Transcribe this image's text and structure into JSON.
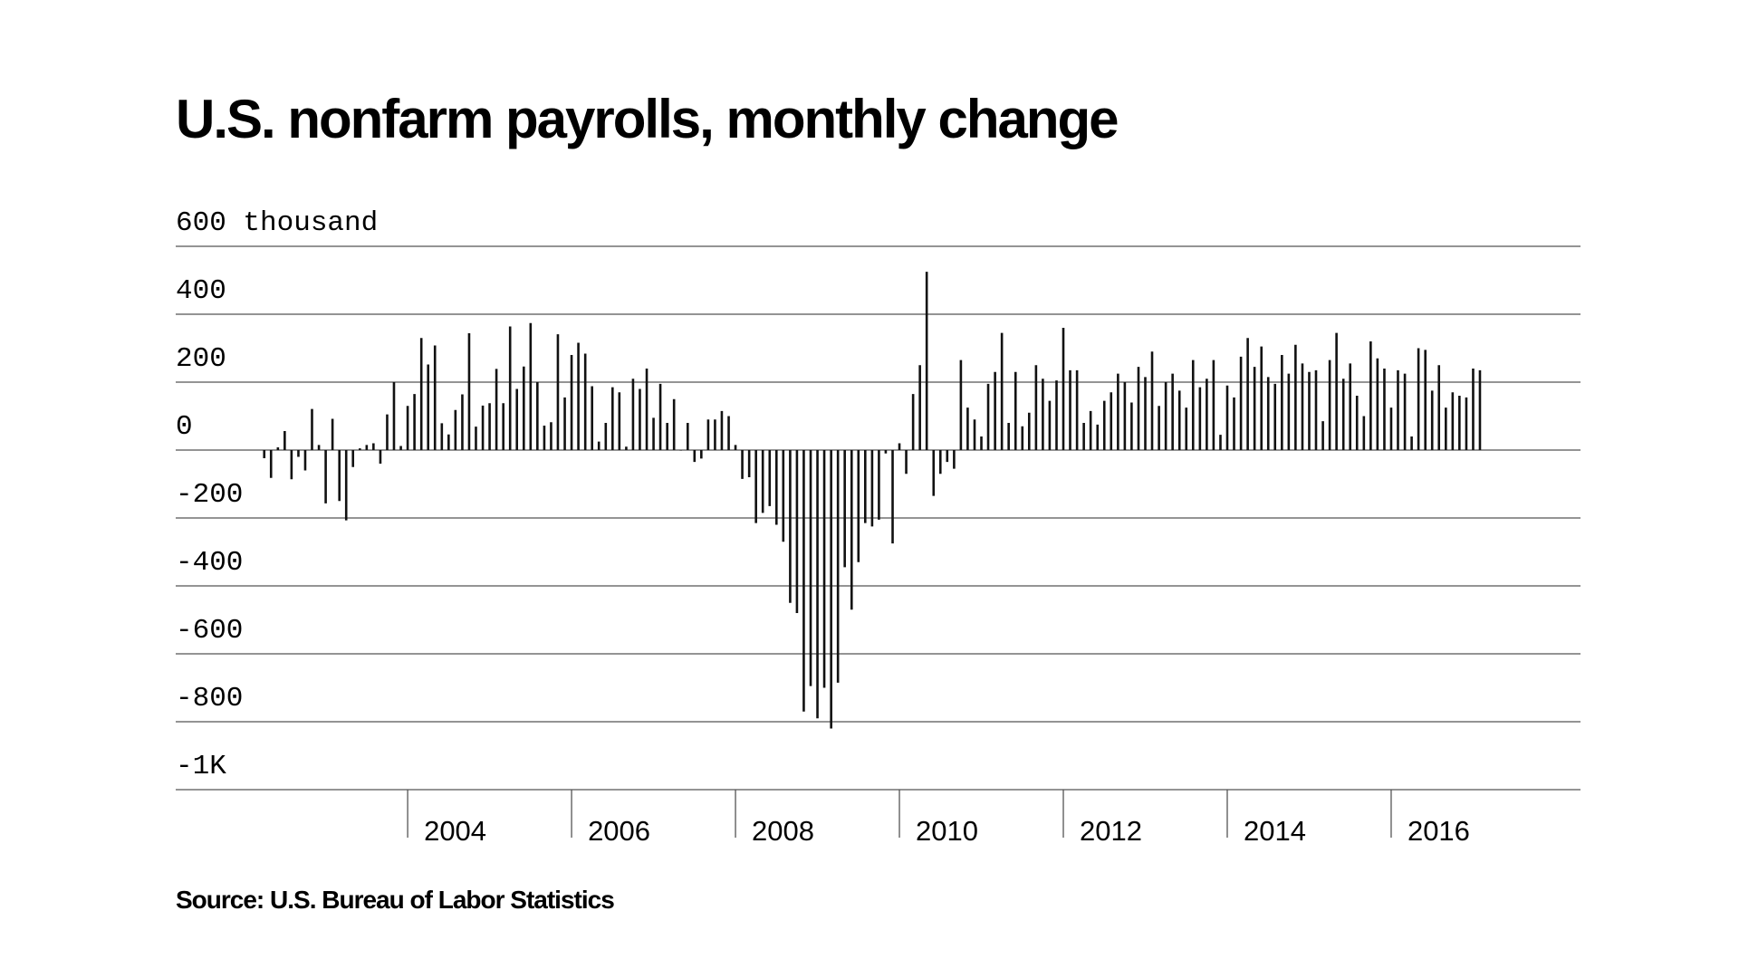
{
  "chart_data": {
    "type": "bar",
    "title": "U.S. nonfarm payrolls, monthly change",
    "source": "Source: U.S. Bureau of Labor Statistics",
    "color": "#111111",
    "grid": true,
    "xlim": [
      2001.17,
      2018.31
    ],
    "xticks": [
      2004,
      2006,
      2008,
      2010,
      2012,
      2014,
      2016
    ],
    "ylim": [
      -1000,
      600
    ],
    "yticks": [
      {
        "value": -1000,
        "label": "-1K"
      },
      -800,
      -600,
      -400,
      -200,
      0,
      200,
      400,
      {
        "value": 600,
        "label": "600 thousand"
      }
    ],
    "x": [
      2002.25,
      2002.333,
      2002.417,
      2002.5,
      2002.583,
      2002.667,
      2002.75,
      2002.833,
      2002.917,
      2003,
      2003.083,
      2003.167,
      2003.25,
      2003.333,
      2003.417,
      2003.5,
      2003.583,
      2003.667,
      2003.75,
      2003.833,
      2003.917,
      2004,
      2004.083,
      2004.167,
      2004.25,
      2004.333,
      2004.417,
      2004.5,
      2004.583,
      2004.667,
      2004.75,
      2004.833,
      2004.917,
      2005,
      2005.083,
      2005.167,
      2005.25,
      2005.333,
      2005.417,
      2005.5,
      2005.583,
      2005.667,
      2005.75,
      2005.833,
      2005.917,
      2006,
      2006.083,
      2006.167,
      2006.25,
      2006.333,
      2006.417,
      2006.5,
      2006.583,
      2006.667,
      2006.75,
      2006.833,
      2006.917,
      2007,
      2007.083,
      2007.167,
      2007.25,
      2007.333,
      2007.417,
      2007.5,
      2007.583,
      2007.667,
      2007.75,
      2007.833,
      2007.917,
      2008,
      2008.083,
      2008.167,
      2008.25,
      2008.333,
      2008.417,
      2008.5,
      2008.583,
      2008.667,
      2008.75,
      2008.833,
      2008.917,
      2009,
      2009.083,
      2009.167,
      2009.25,
      2009.333,
      2009.417,
      2009.5,
      2009.583,
      2009.667,
      2009.75,
      2009.833,
      2009.917,
      2010,
      2010.083,
      2010.167,
      2010.25,
      2010.333,
      2010.417,
      2010.5,
      2010.583,
      2010.667,
      2010.75,
      2010.833,
      2010.917,
      2011,
      2011.083,
      2011.167,
      2011.25,
      2011.333,
      2011.417,
      2011.5,
      2011.583,
      2011.667,
      2011.75,
      2011.833,
      2011.917,
      2012,
      2012.083,
      2012.167,
      2012.25,
      2012.333,
      2012.417,
      2012.5,
      2012.583,
      2012.667,
      2012.75,
      2012.833,
      2012.917,
      2013,
      2013.083,
      2013.167,
      2013.25,
      2013.333,
      2013.417,
      2013.5,
      2013.583,
      2013.667,
      2013.75,
      2013.833,
      2013.917,
      2014,
      2014.083,
      2014.167,
      2014.25,
      2014.333,
      2014.417,
      2014.5,
      2014.583,
      2014.667,
      2014.75,
      2014.833,
      2014.917,
      2015,
      2015.083,
      2015.167,
      2015.25,
      2015.333,
      2015.417,
      2015.5,
      2015.583,
      2015.667,
      2015.75,
      2015.833,
      2015.917,
      2016,
      2016.083,
      2016.167,
      2016.25,
      2016.333,
      2016.417,
      2016.5,
      2016.583,
      2016.667,
      2016.75,
      2016.833,
      2016.917,
      2017,
      2017.083
    ],
    "values": [
      -24,
      -82,
      8,
      56,
      -86,
      -20,
      -60,
      121,
      15,
      -157,
      92,
      -150,
      -207,
      -50,
      5,
      15,
      20,
      -40,
      105,
      200,
      12,
      130,
      165,
      330,
      252,
      308,
      79,
      46,
      118,
      164,
      344,
      69,
      131,
      138,
      239,
      138,
      364,
      180,
      246,
      374,
      200,
      72,
      82,
      341,
      155,
      280,
      316,
      284,
      188,
      25,
      80,
      185,
      170,
      10,
      210,
      180,
      240,
      95,
      195,
      80,
      150,
      0,
      80,
      -35,
      -25,
      90,
      90,
      115,
      100,
      15,
      -85,
      -80,
      -215,
      -185,
      -165,
      -220,
      -270,
      -450,
      -480,
      -770,
      -695,
      -790,
      -700,
      -820,
      -685,
      -345,
      -470,
      -330,
      -215,
      -225,
      -205,
      -10,
      -275,
      20,
      -70,
      165,
      250,
      525,
      -135,
      -70,
      -35,
      -55,
      265,
      125,
      90,
      40,
      195,
      230,
      345,
      80,
      230,
      70,
      110,
      250,
      210,
      145,
      205,
      360,
      235,
      235,
      80,
      115,
      75,
      145,
      170,
      225,
      200,
      140,
      245,
      215,
      290,
      130,
      200,
      225,
      175,
      125,
      265,
      185,
      210,
      265,
      45,
      190,
      155,
      275,
      330,
      245,
      305,
      215,
      195,
      280,
      225,
      310,
      255,
      230,
      235,
      85,
      265,
      345,
      210,
      255,
      160,
      100,
      320,
      270,
      240,
      125,
      235,
      225,
      40,
      300,
      295,
      175,
      250,
      125,
      170,
      160,
      155,
      240,
      235
    ]
  }
}
